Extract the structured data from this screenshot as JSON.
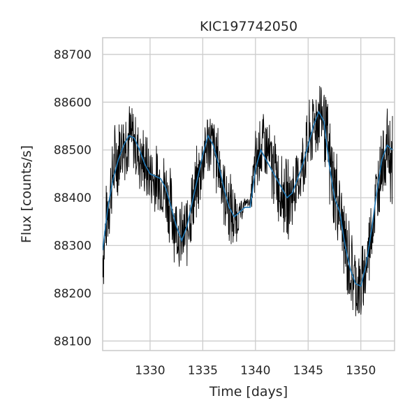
{
  "chart_data": {
    "type": "line",
    "title": "KIC197742050",
    "xlabel": "Time [days]",
    "ylabel": "Flux [counts/s]",
    "xlim": [
      1325.5,
      1353.2
    ],
    "ylim": [
      88080,
      88735
    ],
    "x_ticks": [
      1330,
      1335,
      1340,
      1345,
      1350
    ],
    "y_ticks": [
      88100,
      88200,
      88300,
      88400,
      88500,
      88600,
      88700
    ],
    "x_tick_labels": [
      "1330",
      "1335",
      "1340",
      "1345",
      "1350"
    ],
    "y_tick_labels": [
      "88100",
      "88200",
      "88300",
      "88400",
      "88500",
      "88600",
      "88700"
    ],
    "grid": true,
    "series": [
      {
        "role": "raw",
        "color": "#000000",
        "x": [
          1325.5,
          1326.0,
          1326.5,
          1327.0,
          1327.5,
          1328.0,
          1328.5,
          1329.0,
          1329.5,
          1330.0,
          1330.5,
          1331.0,
          1331.5,
          1332.0,
          1332.5,
          1333.0,
          1333.5,
          1334.0,
          1334.5,
          1335.0,
          1335.5,
          1336.0,
          1336.5,
          1337.0,
          1337.5,
          1338.0,
          1338.5,
          1339.0,
          1339.5,
          1340.0,
          1340.5,
          1341.0,
          1341.5,
          1342.0,
          1342.5,
          1343.0,
          1343.5,
          1344.0,
          1344.5,
          1345.0,
          1345.5,
          1346.0,
          1346.5,
          1347.0,
          1347.5,
          1348.0,
          1348.5,
          1349.0,
          1349.5,
          1350.0,
          1350.5,
          1351.0,
          1351.5,
          1352.0,
          1352.5,
          1353.0
        ],
        "y": [
          88290,
          88380,
          88440,
          88480,
          88510,
          88530,
          88525,
          88500,
          88470,
          88450,
          88445,
          88440,
          88420,
          88380,
          88340,
          88310,
          88340,
          88390,
          88440,
          88490,
          88530,
          88510,
          88470,
          88420,
          88380,
          88360,
          88370,
          88390,
          88390,
          88460,
          88500,
          88480,
          88460,
          88440,
          88420,
          88400,
          88410,
          88440,
          88470,
          88510,
          88550,
          88580,
          88560,
          88470,
          88400,
          88370,
          88300,
          88250,
          88220,
          88215,
          88260,
          88330,
          88410,
          88480,
          88510,
          88500
        ],
        "y_upper": [
          88370,
          88470,
          88560,
          88600,
          88620,
          88620,
          88600,
          88570,
          88560,
          88530,
          88520,
          88520,
          88510,
          88470,
          88430,
          88400,
          88430,
          88480,
          88520,
          88570,
          88610,
          88590,
          88560,
          88510,
          88470,
          88440,
          88400,
          88400,
          88400,
          88560,
          88600,
          88600,
          88560,
          88540,
          88510,
          88490,
          88500,
          88520,
          88560,
          88600,
          88640,
          88680,
          88670,
          88590,
          88540,
          88480,
          88410,
          88360,
          88330,
          88300,
          88350,
          88420,
          88500,
          88560,
          88600,
          88590
        ],
        "y_lower": [
          88180,
          88290,
          88350,
          88390,
          88420,
          88440,
          88430,
          88400,
          88380,
          88360,
          88350,
          88340,
          88320,
          88280,
          88250,
          88220,
          88240,
          88290,
          88340,
          88390,
          88430,
          88420,
          88380,
          88330,
          88290,
          88270,
          88330,
          88380,
          88380,
          88370,
          88420,
          88400,
          88380,
          88350,
          88320,
          88300,
          88320,
          88350,
          88380,
          88420,
          88460,
          88480,
          88470,
          88350,
          88300,
          88270,
          88190,
          88150,
          88120,
          88110,
          88160,
          88240,
          88320,
          88390,
          88420,
          88340
        ]
      },
      {
        "role": "trend",
        "color": "#1f77b4",
        "x": [
          1325.5,
          1326.0,
          1326.5,
          1327.0,
          1327.5,
          1328.0,
          1328.5,
          1329.0,
          1329.5,
          1330.0,
          1330.5,
          1331.0,
          1331.5,
          1332.0,
          1332.5,
          1333.0,
          1333.5,
          1334.0,
          1334.5,
          1335.0,
          1335.5,
          1336.0,
          1336.5,
          1337.0,
          1337.5,
          1338.0,
          1338.5,
          1339.0,
          1339.5,
          1340.0,
          1340.5,
          1341.0,
          1341.5,
          1342.0,
          1342.5,
          1343.0,
          1343.5,
          1344.0,
          1344.5,
          1345.0,
          1345.5,
          1346.0,
          1346.5,
          1347.0,
          1347.5,
          1348.0,
          1348.5,
          1349.0,
          1349.5,
          1350.0,
          1350.5,
          1351.0,
          1351.5,
          1352.0,
          1352.5,
          1353.0
        ],
        "y": [
          88290,
          88380,
          88440,
          88480,
          88510,
          88530,
          88525,
          88500,
          88470,
          88450,
          88445,
          88440,
          88420,
          88380,
          88340,
          88310,
          88340,
          88390,
          88440,
          88490,
          88530,
          88510,
          88470,
          88420,
          88380,
          88360,
          88370,
          88380,
          88380,
          88460,
          88500,
          88480,
          88460,
          88440,
          88420,
          88400,
          88410,
          88440,
          88470,
          88510,
          88550,
          88580,
          88560,
          88470,
          88400,
          88370,
          88300,
          88250,
          88220,
          88215,
          88260,
          88330,
          88410,
          88480,
          88510,
          88500
        ]
      }
    ]
  }
}
